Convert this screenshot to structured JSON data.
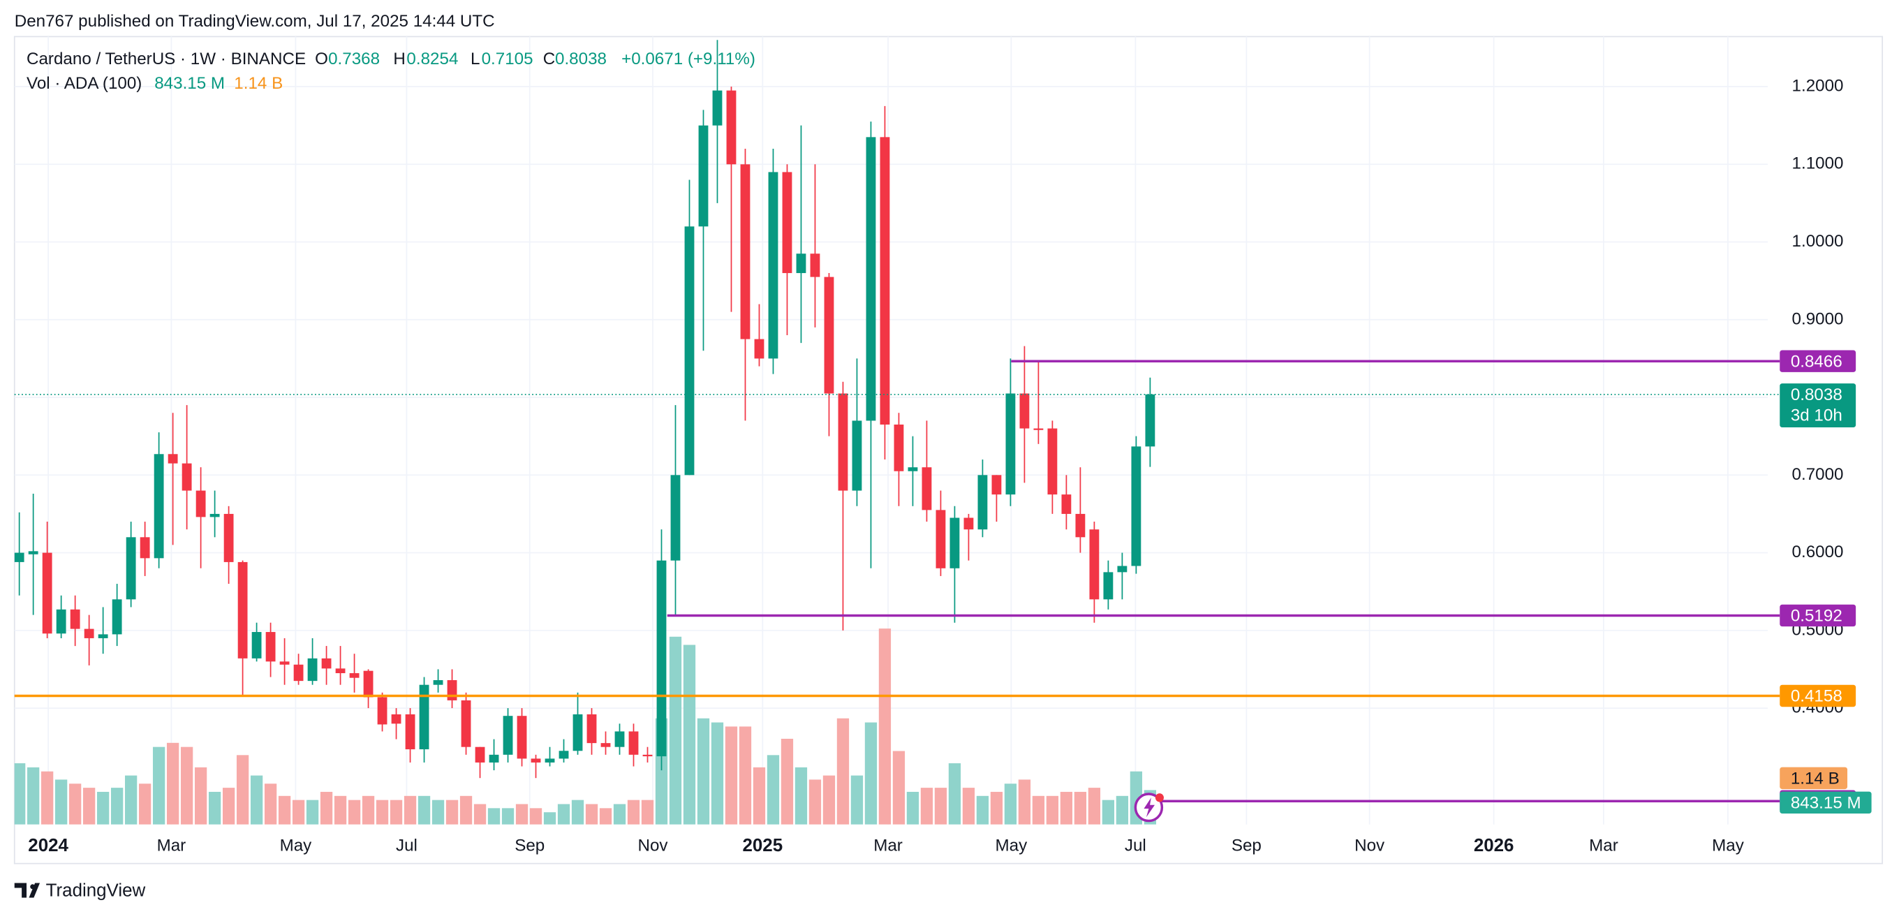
{
  "header": {
    "published": "Den767 published on TradingView.com, Jul 17, 2025 14:44 UTC"
  },
  "legend": {
    "symbol": "Cardano / TetherUS · 1W · BINANCE",
    "o": "O",
    "h": "H",
    "l": "L",
    "c": "C",
    "change": "+0.0671 (+9.11%)",
    "vol": "Vol · ADA (100)",
    "vol_value": "843.15 M",
    "vol_ma": "1.14 B",
    "countdown": "3d 10h"
  },
  "chart_data": {
    "type": "candlestick",
    "open": [
      0.588,
      0.598,
      0.6,
      0.496,
      0.527,
      0.502,
      0.49,
      0.495,
      0.54,
      0.62,
      0.593,
      0.727,
      0.715,
      0.68,
      0.646,
      0.65,
      0.588,
      0.464,
      0.498,
      0.46,
      0.456,
      0.435,
      0.464,
      0.451,
      0.445,
      0.448,
      0.414,
      0.392,
      0.392,
      0.347,
      0.43,
      0.436,
      0.41,
      0.35,
      0.33,
      0.34,
      0.39,
      0.335,
      0.33,
      0.335,
      0.345,
      0.392,
      0.355,
      0.35,
      0.37,
      0.34,
      0.338,
      0.59,
      0.7,
      1.02,
      1.15,
      1.195,
      1.1,
      0.875,
      0.85,
      1.09,
      0.96,
      0.985,
      0.955,
      0.805,
      0.68,
      0.77,
      1.135,
      0.765,
      0.705,
      0.71,
      0.655,
      0.58,
      0.645,
      0.63,
      0.7,
      0.675,
      0.805,
      0.76,
      0.76,
      0.675,
      0.65,
      0.63,
      0.54,
      0.575,
      0.583,
      0.7368
    ],
    "high": [
      0.652,
      0.676,
      0.64,
      0.545,
      0.545,
      0.52,
      0.53,
      0.56,
      0.64,
      0.64,
      0.755,
      0.78,
      0.79,
      0.71,
      0.68,
      0.66,
      0.59,
      0.51,
      0.51,
      0.49,
      0.47,
      0.49,
      0.48,
      0.48,
      0.47,
      0.45,
      0.42,
      0.4,
      0.4,
      0.44,
      0.45,
      0.45,
      0.42,
      0.35,
      0.36,
      0.4,
      0.4,
      0.34,
      0.35,
      0.36,
      0.42,
      0.4,
      0.37,
      0.38,
      0.38,
      0.35,
      0.63,
      0.79,
      1.08,
      1.17,
      1.26,
      1.2,
      1.12,
      0.92,
      1.12,
      1.1,
      1.15,
      1.1,
      0.96,
      0.82,
      0.85,
      1.155,
      1.175,
      0.78,
      0.75,
      0.77,
      0.68,
      0.66,
      0.65,
      0.72,
      0.7,
      0.85,
      0.866,
      0.845,
      0.77,
      0.7,
      0.71,
      0.64,
      0.59,
      0.6,
      0.75,
      0.8254
    ],
    "low": [
      0.545,
      0.52,
      0.49,
      0.49,
      0.48,
      0.455,
      0.47,
      0.48,
      0.53,
      0.57,
      0.58,
      0.61,
      0.63,
      0.58,
      0.62,
      0.56,
      0.415,
      0.46,
      0.44,
      0.43,
      0.43,
      0.43,
      0.43,
      0.43,
      0.42,
      0.4,
      0.37,
      0.36,
      0.33,
      0.33,
      0.42,
      0.4,
      0.34,
      0.31,
      0.32,
      0.33,
      0.325,
      0.31,
      0.325,
      0.33,
      0.34,
      0.34,
      0.34,
      0.34,
      0.325,
      0.33,
      0.32,
      0.52,
      0.7,
      0.86,
      1.05,
      0.91,
      0.77,
      0.84,
      0.83,
      0.88,
      0.87,
      0.89,
      0.75,
      0.5,
      0.66,
      0.58,
      0.72,
      0.66,
      0.66,
      0.64,
      0.57,
      0.51,
      0.59,
      0.62,
      0.64,
      0.66,
      0.69,
      0.74,
      0.65,
      0.63,
      0.6,
      0.51,
      0.527,
      0.54,
      0.573,
      0.7105
    ],
    "close": [
      0.6,
      0.602,
      0.496,
      0.527,
      0.502,
      0.49,
      0.495,
      0.54,
      0.62,
      0.593,
      0.727,
      0.715,
      0.68,
      0.646,
      0.65,
      0.588,
      0.464,
      0.498,
      0.46,
      0.456,
      0.435,
      0.464,
      0.451,
      0.445,
      0.439,
      0.414,
      0.379,
      0.38,
      0.347,
      0.43,
      0.436,
      0.41,
      0.35,
      0.33,
      0.34,
      0.39,
      0.335,
      0.33,
      0.335,
      0.345,
      0.392,
      0.355,
      0.35,
      0.37,
      0.34,
      0.338,
      0.59,
      0.7,
      1.02,
      1.15,
      1.195,
      1.1,
      0.875,
      0.85,
      1.09,
      0.96,
      0.985,
      0.955,
      0.805,
      0.68,
      0.77,
      1.135,
      0.765,
      0.705,
      0.71,
      0.655,
      0.58,
      0.645,
      0.63,
      0.7,
      0.675,
      0.805,
      0.76,
      0.758,
      0.675,
      0.65,
      0.62,
      0.54,
      0.575,
      0.583,
      0.7368,
      0.8038
    ],
    "volume": [
      1.5,
      1.4,
      1.3,
      1.1,
      1.0,
      0.9,
      0.8,
      0.9,
      1.2,
      1.0,
      1.9,
      2.0,
      1.9,
      1.4,
      0.8,
      0.9,
      1.7,
      1.2,
      1.0,
      0.7,
      0.6,
      0.6,
      0.8,
      0.7,
      0.6,
      0.7,
      0.6,
      0.6,
      0.7,
      0.7,
      0.6,
      0.6,
      0.7,
      0.5,
      0.4,
      0.4,
      0.5,
      0.4,
      0.3,
      0.5,
      0.6,
      0.5,
      0.4,
      0.5,
      0.6,
      0.6,
      2.6,
      4.6,
      4.4,
      2.6,
      2.5,
      2.4,
      2.4,
      1.4,
      1.7,
      2.1,
      1.4,
      1.1,
      1.2,
      2.6,
      1.2,
      2.5,
      4.8,
      1.8,
      0.8,
      0.9,
      0.9,
      1.5,
      0.9,
      0.7,
      0.8,
      1.0,
      1.1,
      0.7,
      0.7,
      0.8,
      0.8,
      0.9,
      0.6,
      0.7,
      1.3,
      0.84315
    ],
    "up_color": "#089981",
    "down_color": "#f23645",
    "up_volume_color": "#8fd3cb",
    "down_volume_color": "#f7a9a7",
    "ylim": [
      0.2502,
      1.2644
    ],
    "volume_lim": [
      0,
      19.3
    ],
    "yticks": [
      {
        "value": 0.4,
        "label": "0.4000"
      },
      {
        "value": 0.5,
        "label": "0.5000"
      },
      {
        "value": 0.6,
        "label": "0.6000"
      },
      {
        "value": 0.7,
        "label": "0.7000"
      },
      {
        "value": 0.8,
        "label": "0.8000"
      },
      {
        "value": 0.9,
        "label": "0.9000"
      },
      {
        "value": 1.0,
        "label": "1.0000"
      },
      {
        "value": 1.1,
        "label": "1.1000"
      },
      {
        "value": 1.2,
        "label": "1.2000"
      }
    ],
    "xticks": [
      "2024",
      "Mar",
      "May",
      "Jul",
      "Sep",
      "Nov",
      "2025",
      "Mar",
      "May",
      "Jul",
      "Sep",
      "Nov",
      "2026",
      "Mar",
      "May"
    ],
    "levels": [
      {
        "value": 0.8466,
        "color": "#9c27b0"
      },
      {
        "value": 0.5192,
        "color": "#9c27b0"
      },
      {
        "value": 0.4158,
        "color": "#ff9800"
      },
      {
        "value": 0.2803,
        "color": "#9c27b0"
      }
    ],
    "grid": true
  },
  "footer": {
    "brand": "TradingView"
  }
}
